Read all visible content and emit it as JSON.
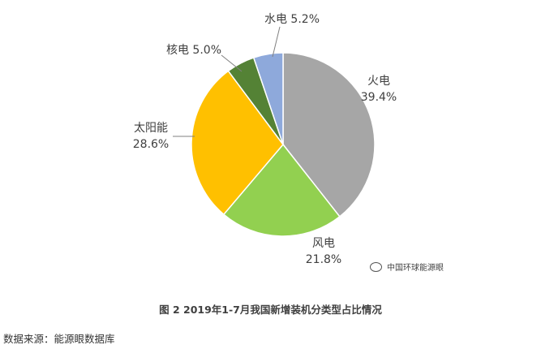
{
  "chart_data": {
    "type": "pie",
    "slices": [
      {
        "category": "火电",
        "value": 39.4,
        "label": "39.4%",
        "color": "#A6A6A6"
      },
      {
        "category": "风电",
        "value": 21.8,
        "label": "21.8%",
        "color": "#92D050"
      },
      {
        "category": "太阳能",
        "value": 28.6,
        "label": "28.6%",
        "color": "#FFC000"
      },
      {
        "category": "核电",
        "value": 5.0,
        "label": "5.0%",
        "color": "#548235"
      },
      {
        "category": "水电",
        "value": 5.2,
        "label": "5.2%",
        "color": "#8EA9DB"
      }
    ],
    "title": "图 2  2019年1-7月我国新增装机分类型占比情况",
    "legend": "none",
    "start_angle": "12 o'clock",
    "direction": "clockwise"
  },
  "footer": {
    "source": "数据来源：能源眼数据库",
    "watermark": "中国环球能源眼"
  }
}
